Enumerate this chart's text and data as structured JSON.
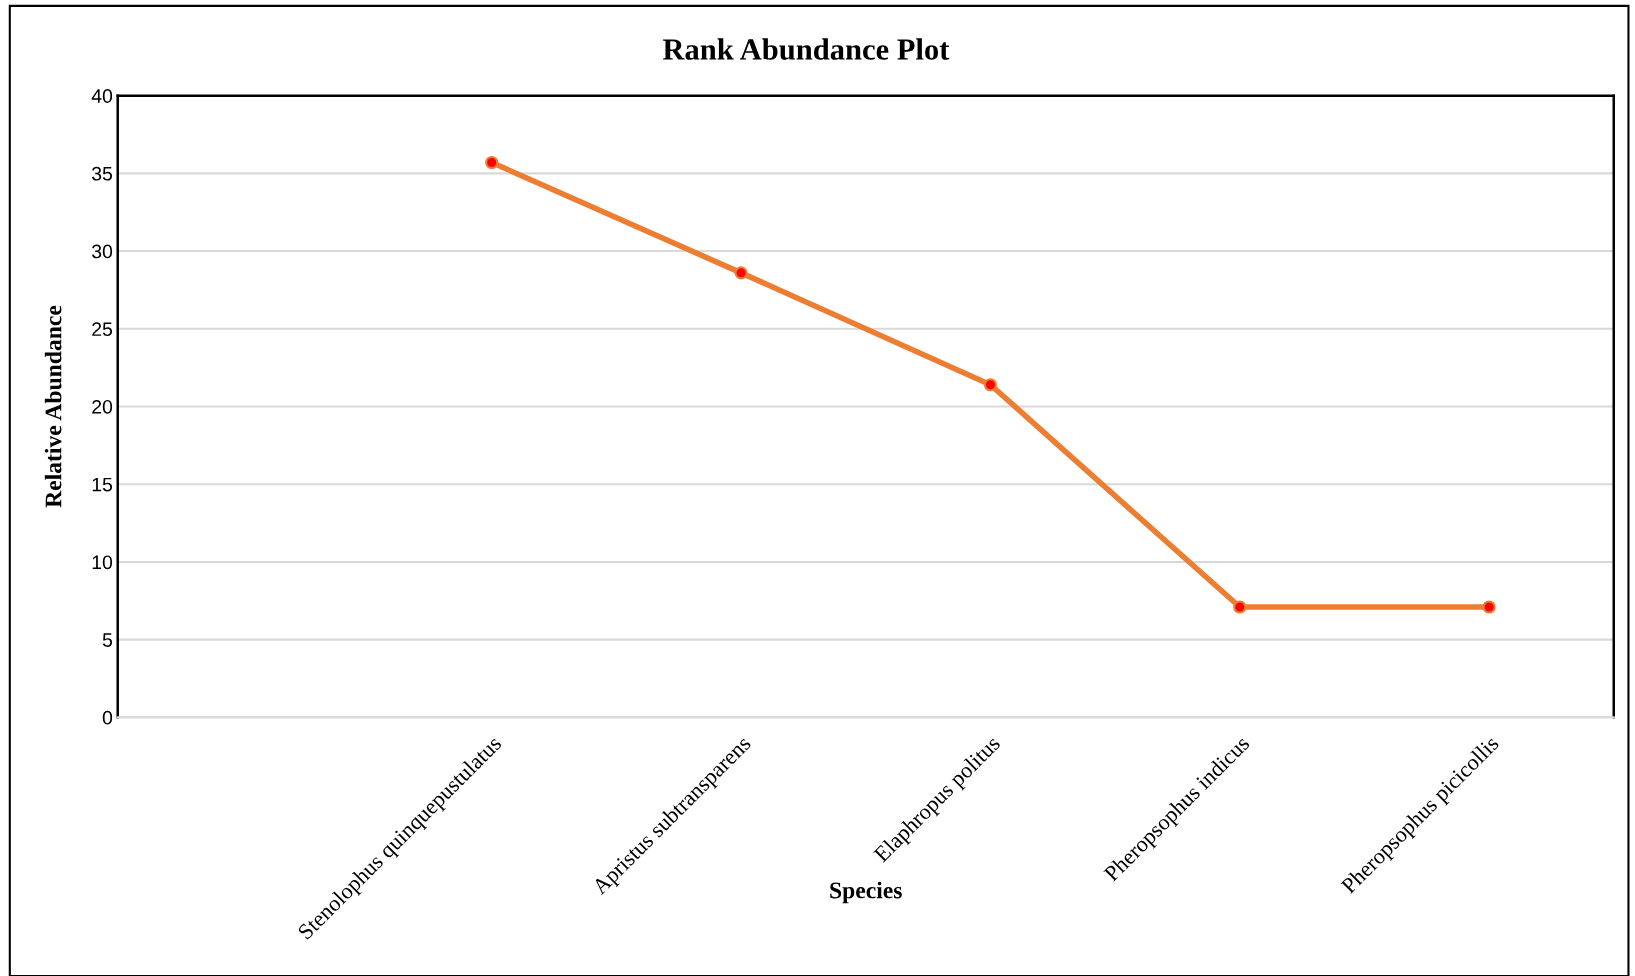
{
  "chart_data": {
    "type": "line",
    "title": "Rank Abundance Plot",
    "xlabel": "Species",
    "ylabel": "Relative Abundance",
    "categories": [
      null,
      "Stenolophus quinquepustulatus",
      "Apristus subtransparens",
      "Elaphropus politus",
      "Pheropsophus indicus",
      "Pheropsophus picicollis"
    ],
    "series": [
      {
        "color": "#ed7d31",
        "values": [
          null,
          35.7,
          28.6,
          21.4,
          7.1,
          7.1
        ]
      }
    ],
    "ylim": [
      0,
      40
    ],
    "yticks": [
      0,
      5,
      10,
      15,
      20,
      25,
      30,
      35,
      40
    ],
    "grid": "y",
    "marker": "circle",
    "line_style": "solid",
    "legend": false
  }
}
